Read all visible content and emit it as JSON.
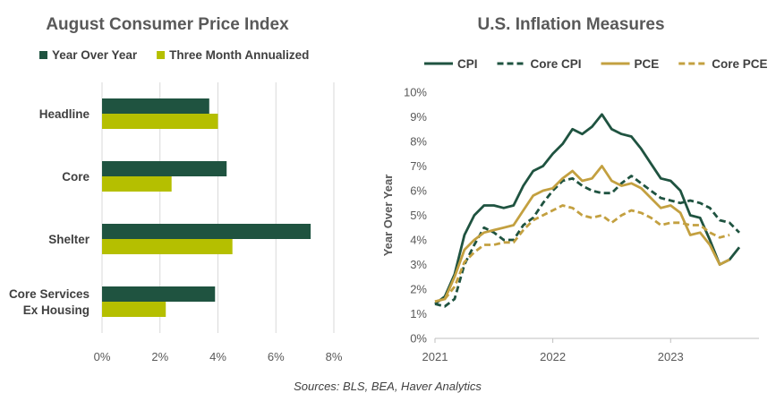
{
  "colors": {
    "dark_green": "#1f5340",
    "lime": "#b5bf00",
    "gold": "#c3a040",
    "gridline": "#d9d9d9"
  },
  "source": "Sources: BLS, BEA, Haver Analytics",
  "chart_data": [
    {
      "type": "bar",
      "orientation": "horizontal",
      "title": "August Consumer Price Index",
      "categories": [
        "Headline",
        "Core",
        "Shelter",
        "Core Services Ex Housing"
      ],
      "category_lines": [
        [
          "Headline"
        ],
        [
          "Core"
        ],
        [
          "Shelter"
        ],
        [
          "Core Services",
          "Ex Housing"
        ]
      ],
      "series": [
        {
          "name": "Year Over Year",
          "color": "#1f5340",
          "values": [
            3.7,
            4.3,
            7.2,
            3.9
          ]
        },
        {
          "name": "Three Month Annualized",
          "color": "#b5bf00",
          "values": [
            4.0,
            2.4,
            4.5,
            2.2
          ]
        }
      ],
      "xlim": [
        0,
        8
      ],
      "xticks": [
        0,
        2,
        4,
        6,
        8
      ],
      "xtick_labels": [
        "0%",
        "2%",
        "4%",
        "6%",
        "8%"
      ],
      "grid": "vertical",
      "legend": "top"
    },
    {
      "type": "line",
      "title": "U.S. Inflation Measures",
      "ylabel": "Year Over Year",
      "x_start": 2021,
      "x_step": 0.08333,
      "xlim": [
        2021,
        2023.75
      ],
      "xticks": [
        2021,
        2022,
        2023
      ],
      "xtick_labels": [
        "2021",
        "2022",
        "2023"
      ],
      "ylim": [
        0,
        10
      ],
      "yticks": [
        0,
        1,
        2,
        3,
        4,
        5,
        6,
        7,
        8,
        9,
        10
      ],
      "ytick_labels": [
        "0%",
        "1%",
        "2%",
        "3%",
        "4%",
        "5%",
        "6%",
        "7%",
        "8%",
        "9%",
        "10%"
      ],
      "legend": "top",
      "series": [
        {
          "name": "CPI",
          "color": "#1f5340",
          "dash": "solid",
          "values": [
            1.4,
            1.7,
            2.6,
            4.2,
            5.0,
            5.4,
            5.4,
            5.3,
            5.4,
            6.2,
            6.8,
            7.0,
            7.5,
            7.9,
            8.5,
            8.3,
            8.6,
            9.1,
            8.5,
            8.3,
            8.2,
            7.7,
            7.1,
            6.5,
            6.4,
            6.0,
            5.0,
            4.9,
            4.0,
            3.0,
            3.2,
            3.7
          ]
        },
        {
          "name": "Core CPI",
          "color": "#1f5340",
          "dash": "dashed",
          "values": [
            1.4,
            1.3,
            1.6,
            3.0,
            3.8,
            4.5,
            4.3,
            4.0,
            4.0,
            4.6,
            4.9,
            5.5,
            6.0,
            6.4,
            6.5,
            6.2,
            6.0,
            5.9,
            5.9,
            6.3,
            6.6,
            6.3,
            6.0,
            5.7,
            5.6,
            5.5,
            5.6,
            5.5,
            5.3,
            4.8,
            4.7,
            4.3
          ]
        },
        {
          "name": "PCE",
          "color": "#c3a040",
          "dash": "solid",
          "values": [
            1.5,
            1.6,
            2.5,
            3.6,
            4.0,
            4.3,
            4.4,
            4.5,
            4.6,
            5.2,
            5.8,
            6.0,
            6.1,
            6.5,
            6.8,
            6.4,
            6.5,
            7.0,
            6.4,
            6.2,
            6.3,
            6.1,
            5.7,
            5.3,
            5.4,
            5.1,
            4.2,
            4.3,
            3.8,
            3.0,
            3.2
          ]
        },
        {
          "name": "Core PCE",
          "color": "#c3a040",
          "dash": "dashed",
          "values": [
            1.5,
            1.6,
            2.1,
            3.1,
            3.5,
            3.8,
            3.8,
            3.9,
            3.9,
            4.4,
            4.8,
            5.0,
            5.2,
            5.4,
            5.3,
            5.0,
            4.9,
            5.0,
            4.7,
            5.0,
            5.2,
            5.1,
            4.9,
            4.6,
            4.7,
            4.7,
            4.6,
            4.6,
            4.3,
            4.1,
            4.2
          ]
        }
      ]
    }
  ]
}
